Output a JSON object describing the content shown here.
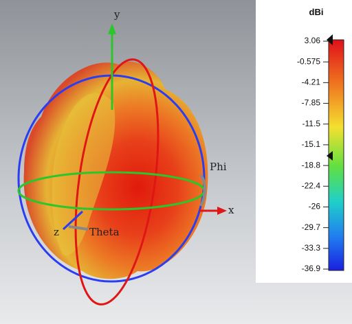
{
  "axes": {
    "y": "y",
    "x": "x",
    "z": "z",
    "phi": "Phi",
    "theta": "Theta"
  },
  "colorbar": {
    "title": "dBi",
    "labels": [
      "3.06",
      "-0.575",
      "-4.21",
      "-7.85",
      "-11.5",
      "-15.1",
      "-18.8",
      "-22.4",
      "-26",
      "-29.7",
      "-33.3",
      "-36.9"
    ]
  }
}
